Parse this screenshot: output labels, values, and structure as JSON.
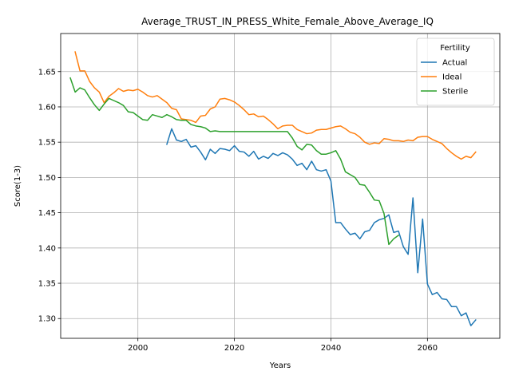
{
  "chart_data": {
    "type": "line",
    "title": "Average_TRUST_IN_PRESS_White_Female_Above_Average_IQ",
    "xlabel": "Years",
    "ylabel": "Score(1-3)",
    "xlim": [
      1984,
      2075
    ],
    "ylim": [
      1.272,
      1.704
    ],
    "xticks": [
      2000,
      2020,
      2040,
      2060
    ],
    "yticks": [
      1.3,
      1.35,
      1.4,
      1.45,
      1.5,
      1.55,
      1.6,
      1.65
    ],
    "xtick_labels": [
      "2000",
      "2020",
      "2040",
      "2060"
    ],
    "ytick_labels": [
      "1.30",
      "1.35",
      "1.40",
      "1.45",
      "1.50",
      "1.55",
      "1.60",
      "1.65"
    ],
    "grid": true,
    "legend": {
      "title": "Fertility",
      "position": "top-right"
    },
    "series": [
      {
        "name": "Actual",
        "color": "#1f77b4",
        "x": [
          2006,
          2007,
          2008,
          2009,
          2010,
          2011,
          2012,
          2013,
          2014,
          2015,
          2016,
          2017,
          2018,
          2019,
          2020,
          2021,
          2022,
          2023,
          2024,
          2025,
          2026,
          2027,
          2028,
          2029,
          2030,
          2031,
          2032,
          2033,
          2034,
          2035,
          2036,
          2037,
          2038,
          2039,
          2040,
          2041,
          2042,
          2043,
          2044,
          2045,
          2046,
          2047,
          2048,
          2049,
          2050,
          2051,
          2052,
          2053,
          2054,
          2055,
          2056,
          2057,
          2058,
          2059,
          2060,
          2061,
          2062,
          2063,
          2064,
          2065,
          2066,
          2067,
          2068,
          2069,
          2070
        ],
        "values": [
          1.547,
          1.569,
          1.553,
          1.551,
          1.554,
          1.543,
          1.545,
          1.536,
          1.525,
          1.54,
          1.534,
          1.541,
          1.54,
          1.538,
          1.545,
          1.537,
          1.536,
          1.53,
          1.537,
          1.526,
          1.53,
          1.527,
          1.534,
          1.531,
          1.535,
          1.532,
          1.526,
          1.517,
          1.52,
          1.511,
          1.523,
          1.511,
          1.509,
          1.511,
          1.495,
          1.436,
          1.436,
          1.427,
          1.419,
          1.421,
          1.413,
          1.423,
          1.425,
          1.436,
          1.44,
          1.442,
          1.447,
          1.422,
          1.424,
          1.402,
          1.391,
          1.471,
          1.365,
          1.441,
          1.349,
          1.334,
          1.337,
          1.328,
          1.327,
          1.317,
          1.317,
          1.304,
          1.308,
          1.29,
          1.298
        ]
      },
      {
        "name": "Ideal",
        "color": "#ff7f0e",
        "x": [
          1987,
          1988,
          1989,
          1990,
          1991,
          1992,
          1993,
          1994,
          1995,
          1996,
          1997,
          1998,
          1999,
          2000,
          2001,
          2002,
          2003,
          2004,
          2005,
          2006,
          2007,
          2008,
          2009,
          2010,
          2011,
          2012,
          2013,
          2014,
          2015,
          2016,
          2017,
          2018,
          2019,
          2020,
          2021,
          2022,
          2023,
          2024,
          2025,
          2026,
          2027,
          2028,
          2029,
          2030,
          2031,
          2032,
          2033,
          2034,
          2035,
          2036,
          2037,
          2038,
          2039,
          2040,
          2041,
          2042,
          2043,
          2044,
          2045,
          2046,
          2047,
          2048,
          2049,
          2050,
          2051,
          2052,
          2053,
          2054,
          2055,
          2056,
          2057,
          2058,
          2059,
          2060,
          2061,
          2062,
          2063,
          2064,
          2065,
          2066,
          2067,
          2068,
          2069,
          2070
        ],
        "values": [
          1.678,
          1.651,
          1.651,
          1.636,
          1.627,
          1.621,
          1.606,
          1.615,
          1.62,
          1.626,
          1.622,
          1.624,
          1.623,
          1.625,
          1.621,
          1.616,
          1.614,
          1.616,
          1.611,
          1.606,
          1.598,
          1.596,
          1.583,
          1.582,
          1.581,
          1.578,
          1.587,
          1.588,
          1.597,
          1.6,
          1.611,
          1.612,
          1.61,
          1.607,
          1.602,
          1.596,
          1.589,
          1.59,
          1.586,
          1.587,
          1.582,
          1.576,
          1.569,
          1.573,
          1.574,
          1.574,
          1.568,
          1.565,
          1.562,
          1.563,
          1.567,
          1.568,
          1.568,
          1.57,
          1.572,
          1.573,
          1.569,
          1.564,
          1.562,
          1.557,
          1.55,
          1.547,
          1.549,
          1.548,
          1.555,
          1.554,
          1.552,
          1.552,
          1.551,
          1.553,
          1.552,
          1.557,
          1.558,
          1.558,
          1.554,
          1.551,
          1.548,
          1.541,
          1.535,
          1.53,
          1.526,
          1.53,
          1.528,
          1.536
        ]
      },
      {
        "name": "Sterile",
        "color": "#2ca02c",
        "x": [
          1986,
          1987,
          1988,
          1989,
          1990,
          1991,
          1992,
          1993,
          1994,
          1995,
          1996,
          1997,
          1998,
          1999,
          2000,
          2001,
          2002,
          2003,
          2004,
          2005,
          2006,
          2007,
          2008,
          2009,
          2010,
          2011,
          2012,
          2013,
          2014,
          2015,
          2016,
          2017,
          2018,
          2019,
          2020,
          2021,
          2022,
          2023,
          2024,
          2025,
          2026,
          2027,
          2028,
          2029,
          2030,
          2031,
          2032,
          2033,
          2034,
          2035,
          2036,
          2037,
          2038,
          2039,
          2040,
          2041,
          2042,
          2043,
          2044,
          2045,
          2046,
          2047,
          2048,
          2049,
          2050,
          2051,
          2052,
          2053,
          2054
        ],
        "values": [
          1.641,
          1.621,
          1.627,
          1.624,
          1.613,
          1.603,
          1.595,
          1.604,
          1.612,
          1.609,
          1.606,
          1.602,
          1.593,
          1.592,
          1.587,
          1.582,
          1.581,
          1.589,
          1.587,
          1.585,
          1.589,
          1.586,
          1.582,
          1.581,
          1.581,
          1.575,
          1.573,
          1.572,
          1.57,
          1.565,
          1.566,
          1.565,
          1.565,
          1.565,
          1.565,
          1.565,
          1.565,
          1.565,
          1.565,
          1.565,
          1.565,
          1.565,
          1.565,
          1.565,
          1.565,
          1.565,
          1.556,
          1.544,
          1.539,
          1.547,
          1.546,
          1.538,
          1.533,
          1.533,
          1.535,
          1.538,
          1.526,
          1.508,
          1.504,
          1.5,
          1.49,
          1.489,
          1.479,
          1.468,
          1.467,
          1.449,
          1.405,
          1.413,
          1.418
        ]
      }
    ]
  }
}
